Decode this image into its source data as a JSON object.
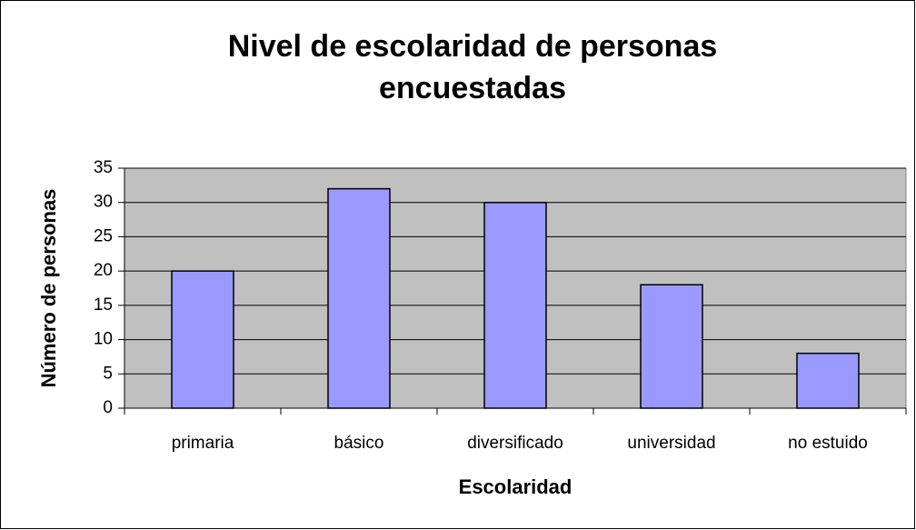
{
  "chart_data": {
    "type": "bar",
    "title": "Nivel de escolaridad de personas encuestadas",
    "x_label": "Escolaridad",
    "y_label": "Número de personas",
    "categories": [
      "primaria",
      "básico",
      "diversificado",
      "universidad",
      "no estuido"
    ],
    "values": [
      20,
      32,
      30,
      18,
      8
    ],
    "color": "#9999ff",
    "ylim": [
      0,
      35
    ],
    "yticks": [
      0,
      5,
      10,
      15,
      20,
      25,
      30,
      35
    ],
    "grid": true
  }
}
